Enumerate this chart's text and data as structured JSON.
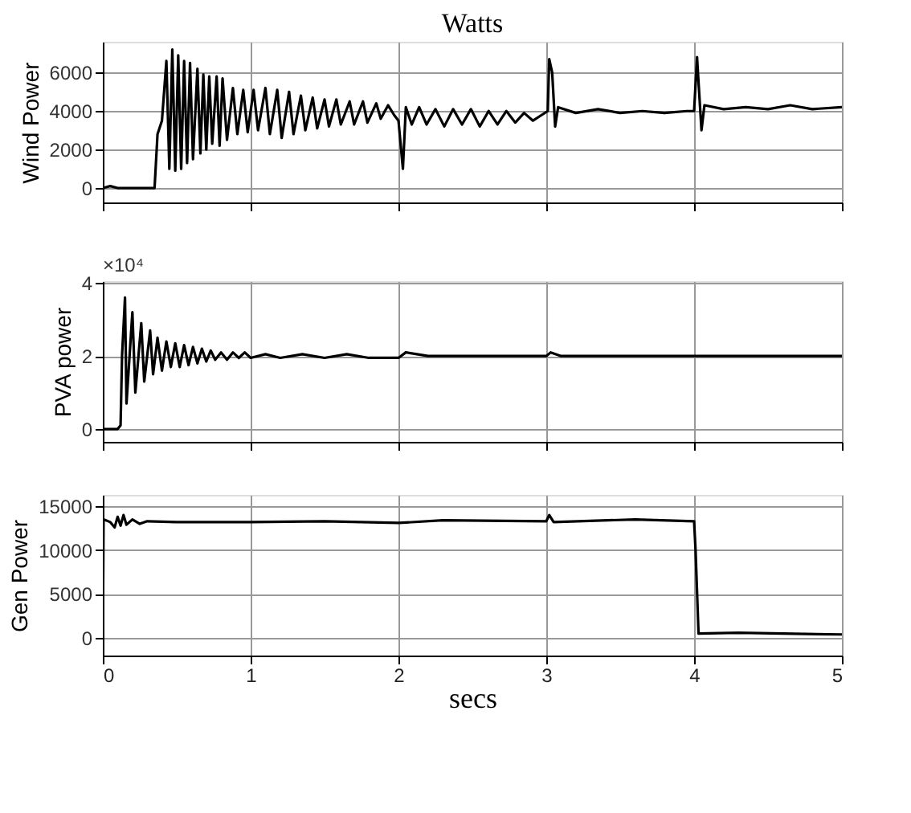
{
  "chart_data": [
    {
      "type": "line",
      "title": "Watts",
      "ylabel": "Wind Power",
      "xlim": [
        0,
        5
      ],
      "xticks": [
        0,
        1,
        2,
        3,
        4,
        5
      ],
      "ylim": [
        -750,
        7600
      ],
      "yticks": [
        0,
        2000,
        4000,
        6000
      ],
      "grid": true,
      "tick_labels": "y",
      "series": [
        {
          "color": "#000000",
          "x": [
            0,
            0.05,
            0.1,
            0.35,
            0.37,
            0.4,
            0.43,
            0.45,
            0.47,
            0.49,
            0.51,
            0.53,
            0.55,
            0.57,
            0.59,
            0.61,
            0.64,
            0.66,
            0.68,
            0.7,
            0.72,
            0.74,
            0.77,
            0.79,
            0.81,
            0.84,
            0.88,
            0.91,
            0.95,
            0.98,
            1.02,
            1.05,
            1.1,
            1.13,
            1.18,
            1.21,
            1.26,
            1.29,
            1.34,
            1.37,
            1.42,
            1.45,
            1.5,
            1.53,
            1.58,
            1.61,
            1.67,
            1.7,
            1.76,
            1.79,
            1.85,
            1.88,
            1.93,
            1.97,
            2.0,
            2.03,
            2.05,
            2.09,
            2.14,
            2.19,
            2.25,
            2.31,
            2.37,
            2.43,
            2.49,
            2.55,
            2.61,
            2.67,
            2.73,
            2.79,
            2.85,
            2.91,
            2.97,
            3.01,
            3.02,
            3.04,
            3.06,
            3.08,
            3.2,
            3.35,
            3.5,
            3.65,
            3.8,
            3.95,
            4.0,
            4.02,
            4.03,
            4.05,
            4.07,
            4.2,
            4.35,
            4.5,
            4.65,
            4.8,
            5.0
          ],
          "values": [
            0,
            100,
            0,
            0,
            2800,
            3500,
            6600,
            1000,
            7200,
            900,
            6900,
            1000,
            6600,
            1300,
            6500,
            1500,
            6200,
            1800,
            5900,
            2000,
            5800,
            2300,
            5800,
            2200,
            5700,
            2500,
            5200,
            2800,
            5100,
            2900,
            5100,
            3000,
            5200,
            2800,
            5100,
            2600,
            5000,
            2800,
            4800,
            3000,
            4700,
            3100,
            4600,
            3200,
            4600,
            3300,
            4500,
            3300,
            4500,
            3400,
            4400,
            3600,
            4300,
            3800,
            3500,
            1000,
            4200,
            3300,
            4200,
            3300,
            4100,
            3200,
            4100,
            3300,
            4100,
            3200,
            4000,
            3300,
            4000,
            3400,
            3900,
            3500,
            3800,
            4000,
            6700,
            6000,
            3200,
            4200,
            3900,
            4100,
            3900,
            4000,
            3900,
            4000,
            4000,
            6800,
            5500,
            3000,
            4300,
            4100,
            4200,
            4100,
            4300,
            4100,
            4200
          ]
        }
      ]
    },
    {
      "type": "line",
      "ylabel": "PVA power",
      "annotations": [
        "×10⁴"
      ],
      "xlim": [
        0,
        5
      ],
      "xticks": [
        0,
        1,
        2,
        3,
        4,
        5
      ],
      "ylim": [
        -0.35,
        4.05
      ],
      "yticks": [
        0,
        2,
        4
      ],
      "grid": true,
      "tick_labels": "y",
      "series": [
        {
          "color": "#000000",
          "x": [
            0,
            0.1,
            0.12,
            0.13,
            0.15,
            0.16,
            0.2,
            0.22,
            0.26,
            0.28,
            0.32,
            0.34,
            0.37,
            0.4,
            0.43,
            0.46,
            0.49,
            0.52,
            0.55,
            0.58,
            0.61,
            0.64,
            0.67,
            0.7,
            0.73,
            0.76,
            0.8,
            0.84,
            0.88,
            0.92,
            0.96,
            1.0,
            1.1,
            1.2,
            1.35,
            1.5,
            1.65,
            1.8,
            2.0,
            2.05,
            2.2,
            2.5,
            3.0,
            3.03,
            3.1,
            4.0,
            5.0
          ],
          "values": [
            0,
            0,
            0.1,
            2.0,
            3.6,
            0.7,
            3.2,
            1.0,
            2.9,
            1.3,
            2.7,
            1.5,
            2.5,
            1.6,
            2.4,
            1.7,
            2.35,
            1.7,
            2.3,
            1.75,
            2.25,
            1.8,
            2.2,
            1.85,
            2.15,
            1.9,
            2.1,
            1.9,
            2.1,
            1.95,
            2.1,
            1.95,
            2.05,
            1.95,
            2.05,
            1.95,
            2.05,
            1.95,
            1.95,
            2.1,
            2.0,
            2.0,
            2.0,
            2.1,
            2.0,
            2.0,
            2.0
          ]
        }
      ]
    },
    {
      "type": "line",
      "xlabel": "secs",
      "ylabel": "Gen Power",
      "xlim": [
        0,
        5
      ],
      "xticks": [
        0,
        1,
        2,
        3,
        4,
        5
      ],
      "ylim": [
        -2000,
        16300
      ],
      "yticks": [
        0,
        5000,
        10000,
        15000
      ],
      "grid": true,
      "series": [
        {
          "color": "#000000",
          "x": [
            0,
            0.005,
            0.05,
            0.08,
            0.1,
            0.12,
            0.14,
            0.16,
            0.2,
            0.25,
            0.3,
            0.5,
            1.0,
            1.5,
            2.0,
            2.3,
            3.0,
            3.02,
            3.05,
            3.6,
            4.0,
            4.01,
            4.03,
            4.3,
            4.6,
            5.0
          ],
          "values": [
            0,
            13500,
            13200,
            12600,
            13800,
            12800,
            14000,
            12900,
            13500,
            13000,
            13300,
            13200,
            13200,
            13300,
            13100,
            13400,
            13300,
            14000,
            13200,
            13500,
            13300,
            10000,
            500,
            600,
            500,
            400
          ]
        }
      ]
    }
  ]
}
